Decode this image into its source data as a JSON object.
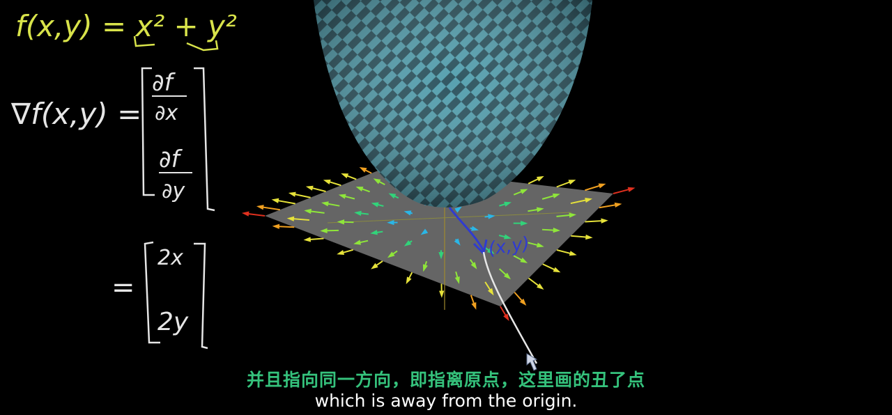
{
  "colors": {
    "background": "#000000",
    "equation_top": "#d8e34a",
    "chalk_white": "#e6e6e6",
    "annotation_blue": "#2f3bd0",
    "surface_dark": "#244f5c",
    "surface_light": "#4a9aaa",
    "plane": "#6e6e6e",
    "subtitle_zh": "#35c27c",
    "subtitle_en": "#ffffff"
  },
  "handwriting": {
    "function_def": "f(x,y) = x² + y²",
    "gradient_lhs": "∇f(x,y) =",
    "partial_x_num": "∂f",
    "partial_x_den": "∂x",
    "partial_y_num": "∂f",
    "partial_y_den": "∂y",
    "equals_sign": "=",
    "result_x": "2x",
    "result_y": "2y",
    "point_label": "(x,y)"
  },
  "subtitles": {
    "chinese": "并且指向同一方向，即指离原点，这里画的丑了点",
    "english": "which is away from the origin."
  },
  "icons": {
    "cursor": "pen-cursor-icon"
  }
}
